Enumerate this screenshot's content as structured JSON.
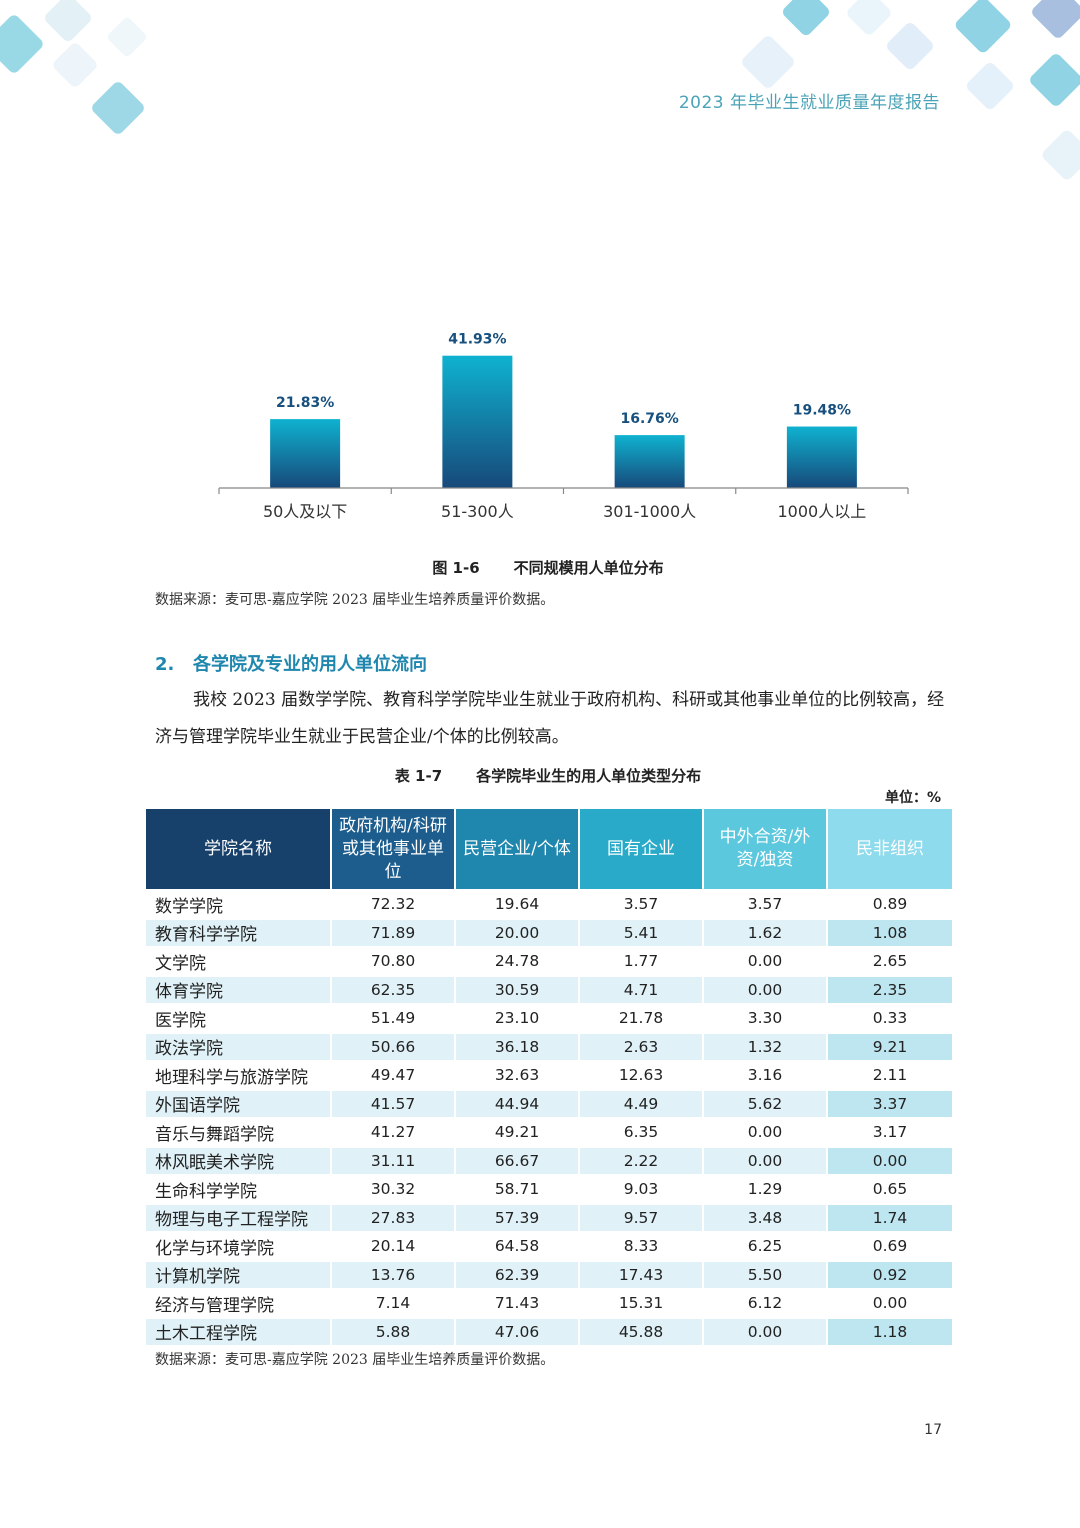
{
  "colors": {
    "header_text": "#4ba3b7",
    "heading_text": "#1f86ad",
    "bar_value_text": "#17507e",
    "bar_top": "#0fb2d0",
    "bar_bottom": "#17497a",
    "axis": "#888888"
  },
  "header": {
    "running_title": "2023 年毕业生就业质量年度报告"
  },
  "figure": {
    "number": "图 1-6",
    "title": "不同规模用人单位分布",
    "source": "数据来源：麦可思-嘉应学院 2023 届毕业生培养质量评价数据。"
  },
  "chart_data": {
    "type": "bar",
    "categories": [
      "50人及以下",
      "51-300人",
      "301-1000人",
      "1000人以上"
    ],
    "values": [
      21.83,
      41.93,
      16.76,
      19.48
    ],
    "data_labels": [
      "21.83%",
      "41.93%",
      "16.76%",
      "19.48%"
    ],
    "title": "",
    "xlabel": "",
    "ylabel": "",
    "ylim": [
      0,
      45
    ],
    "grid": false,
    "legend": "none"
  },
  "section": {
    "number": "2.",
    "title": "各学院及专业的用人单位流向",
    "paragraph": "我校 2023 届数学学院、教育科学学院毕业生就业于政府机构、科研或其他事业单位的比例较高，经济与管理学院毕业生就业于民营企业/个体的比例较高。"
  },
  "table": {
    "number": "表 1-7",
    "title": "各学院毕业生的用人单位类型分布",
    "unit": "单位：%",
    "headers": [
      "学院名称",
      "政府机构/科研或其他事业单位",
      "民营企业/个体",
      "国有企业",
      "中外合资/外资/独资",
      "民非组织"
    ],
    "rows": [
      [
        "数学学院",
        "72.32",
        "19.64",
        "3.57",
        "3.57",
        "0.89"
      ],
      [
        "教育科学学院",
        "71.89",
        "20.00",
        "5.41",
        "1.62",
        "1.08"
      ],
      [
        "文学院",
        "70.80",
        "24.78",
        "1.77",
        "0.00",
        "2.65"
      ],
      [
        "体育学院",
        "62.35",
        "30.59",
        "4.71",
        "0.00",
        "2.35"
      ],
      [
        "医学院",
        "51.49",
        "23.10",
        "21.78",
        "3.30",
        "0.33"
      ],
      [
        "政法学院",
        "50.66",
        "36.18",
        "2.63",
        "1.32",
        "9.21"
      ],
      [
        "地理科学与旅游学院",
        "49.47",
        "32.63",
        "12.63",
        "3.16",
        "2.11"
      ],
      [
        "外国语学院",
        "41.57",
        "44.94",
        "4.49",
        "5.62",
        "3.37"
      ],
      [
        "音乐与舞蹈学院",
        "41.27",
        "49.21",
        "6.35",
        "0.00",
        "3.17"
      ],
      [
        "林风眠美术学院",
        "31.11",
        "66.67",
        "2.22",
        "0.00",
        "0.00"
      ],
      [
        "生命科学学院",
        "30.32",
        "58.71",
        "9.03",
        "1.29",
        "0.65"
      ],
      [
        "物理与电子工程学院",
        "27.83",
        "57.39",
        "9.57",
        "3.48",
        "1.74"
      ],
      [
        "化学与环境学院",
        "20.14",
        "64.58",
        "8.33",
        "6.25",
        "0.69"
      ],
      [
        "计算机学院",
        "13.76",
        "62.39",
        "17.43",
        "5.50",
        "0.92"
      ],
      [
        "经济与管理学院",
        "7.14",
        "71.43",
        "15.31",
        "6.12",
        "0.00"
      ],
      [
        "土木工程学院",
        "5.88",
        "47.06",
        "45.88",
        "0.00",
        "1.18"
      ]
    ],
    "source": "数据来源：麦可思-嘉应学院 2023 届毕业生培养质量评价数据。"
  },
  "page_number": "17"
}
